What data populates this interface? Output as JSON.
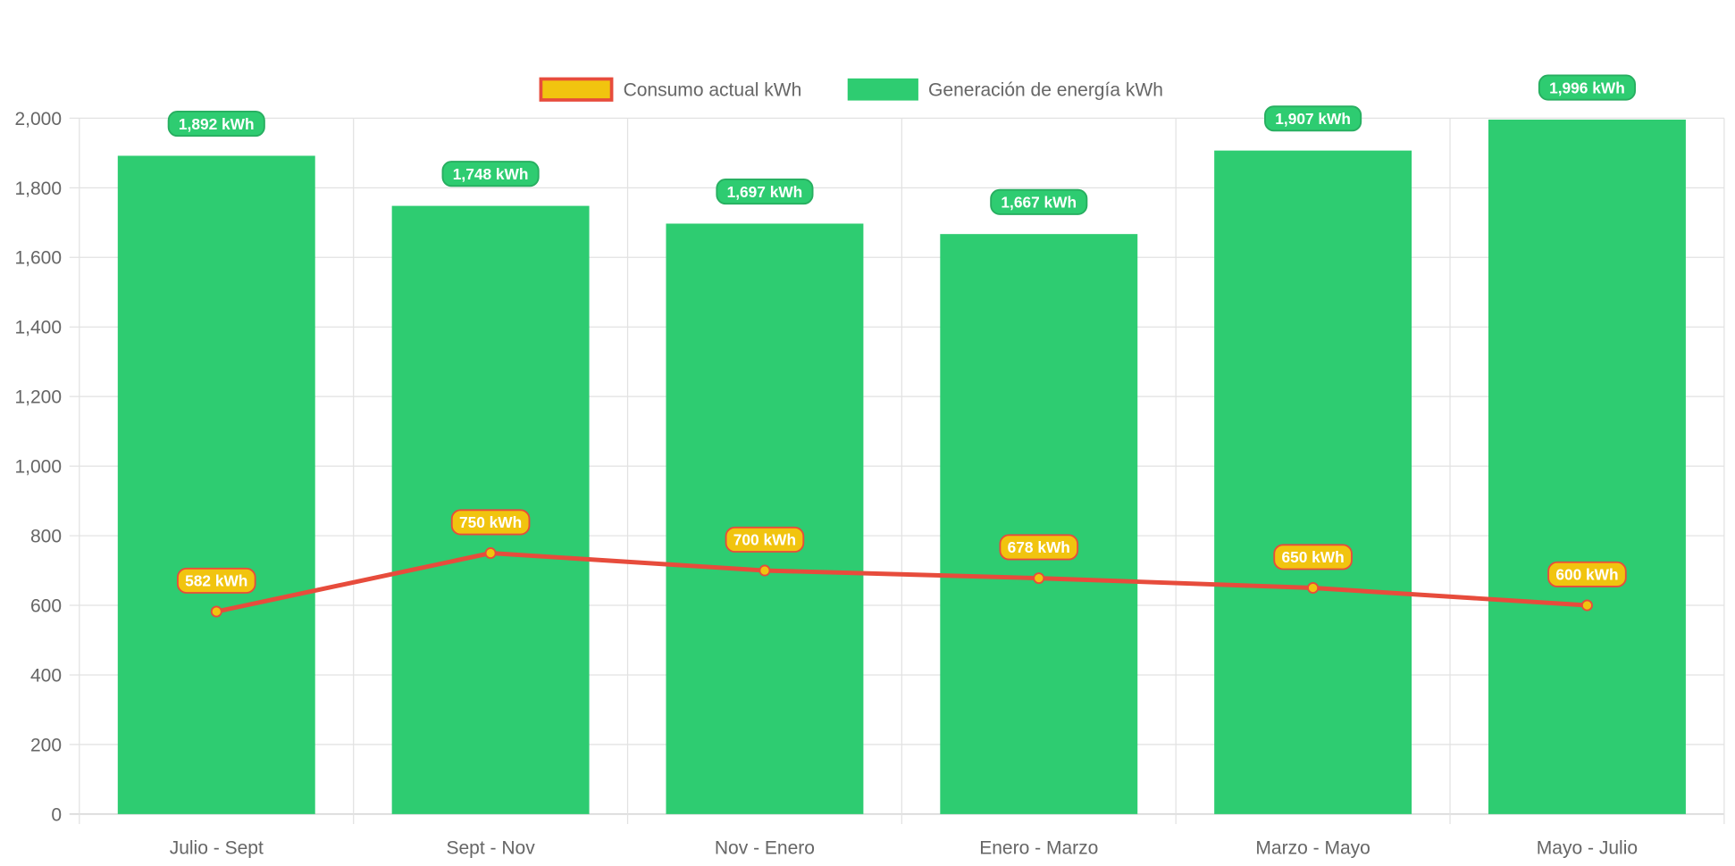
{
  "chart_data": {
    "type": "bar",
    "categories": [
      "Julio - Sept",
      "Sept - Nov",
      "Nov - Enero",
      "Enero - Marzo",
      "Marzo - Mayo",
      "Mayo - Julio"
    ],
    "series": [
      {
        "name": "Consumo actual kWh",
        "type": "line",
        "values": [
          582,
          750,
          700,
          678,
          650,
          600
        ],
        "labels": [
          "582 kWh",
          "750 kWh",
          "700 kWh",
          "678 kWh",
          "650 kWh",
          "600 kWh"
        ],
        "color": "#e74c3c",
        "fill": "#f1c40f"
      },
      {
        "name": "Generación de energía kWh",
        "type": "bar",
        "values": [
          1892,
          1748,
          1697,
          1667,
          1907,
          1996
        ],
        "labels": [
          "1,892 kWh",
          "1,748 kWh",
          "1,697 kWh",
          "1,667 kWh",
          "1,907 kWh",
          "1,996 kWh"
        ],
        "color": "#2ecc71",
        "border": "#27ae60"
      }
    ],
    "yticks": [
      "0",
      "200",
      "400",
      "600",
      "800",
      "1,000",
      "1,200",
      "1,400",
      "1,600",
      "1,800",
      "2,000"
    ],
    "ylim": [
      0,
      2000
    ],
    "ystep": 200,
    "grid": true,
    "legend": "top-center",
    "title": "",
    "xlabel": "",
    "ylabel": ""
  }
}
